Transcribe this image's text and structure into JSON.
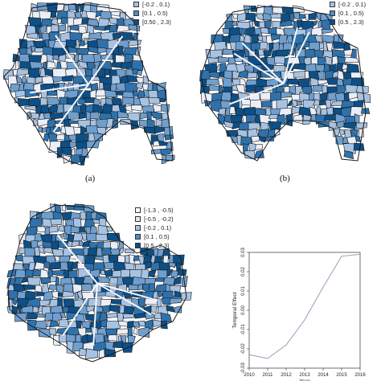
{
  "colors": {
    "c0": "#e9eef8",
    "c1": "#a7c3e3",
    "c2": "#6f9fcf",
    "c3": "#2e72ad",
    "c4": "#0d4f86",
    "border": "#1a1a1a"
  },
  "panels": [
    {
      "id": "a",
      "caption": "(a)",
      "legend": [
        {
          "label": "[-0.2 , 0.1)",
          "color": "#a7c3e3"
        },
        {
          "label": "[0.1 , 0.5)",
          "color": "#4d8cc6"
        },
        {
          "label": "[0.50 , 2.3)",
          "color": "#0d4f86"
        }
      ]
    },
    {
      "id": "b",
      "caption": "(b)",
      "legend": [
        {
          "label": "[-0.2 , 0.1)",
          "color": "#a7c3e3"
        },
        {
          "label": "[0.1 , 0.5)",
          "color": "#4d8cc6"
        },
        {
          "label": "[0.5 , 2.3)",
          "color": "#0d4f86"
        }
      ]
    },
    {
      "id": "c",
      "caption": "",
      "legend": [
        {
          "label": "[-1.3 , -0.5)",
          "color": "#ffffff"
        },
        {
          "label": "[-0.5 , -0.2)",
          "color": "#dfe8f5"
        },
        {
          "label": "[-0.2 , 0.1)",
          "color": "#a7c3e3"
        },
        {
          "label": "[0.1 , 0.5)",
          "color": "#4d8cc6"
        },
        {
          "label": "[0.5 , 2.3)",
          "color": "#0d4f86"
        }
      ]
    }
  ],
  "chart_data": {
    "type": "line",
    "title": "",
    "xlabel": "Year",
    "ylabel": "Temporal Effect",
    "x": [
      2010,
      2011,
      2012,
      2013,
      2014,
      2015,
      2016
    ],
    "series": [
      {
        "values": [
          -0.023,
          -0.025,
          -0.018,
          -0.005,
          0.012,
          0.028,
          0.029
        ]
      }
    ],
    "xlim": [
      2010,
      2016
    ],
    "ylim": [
      -0.03,
      0.03
    ],
    "x_ticks": [
      "2010",
      "2011",
      "2012",
      "2013",
      "2014",
      "2015",
      "2016"
    ],
    "y_ticks": [
      "-0.03",
      "-0.02",
      "-0.01",
      "0.00",
      "0.01",
      "0.02",
      "0.03"
    ],
    "grid": false,
    "line_color": "#9a9ab8"
  }
}
